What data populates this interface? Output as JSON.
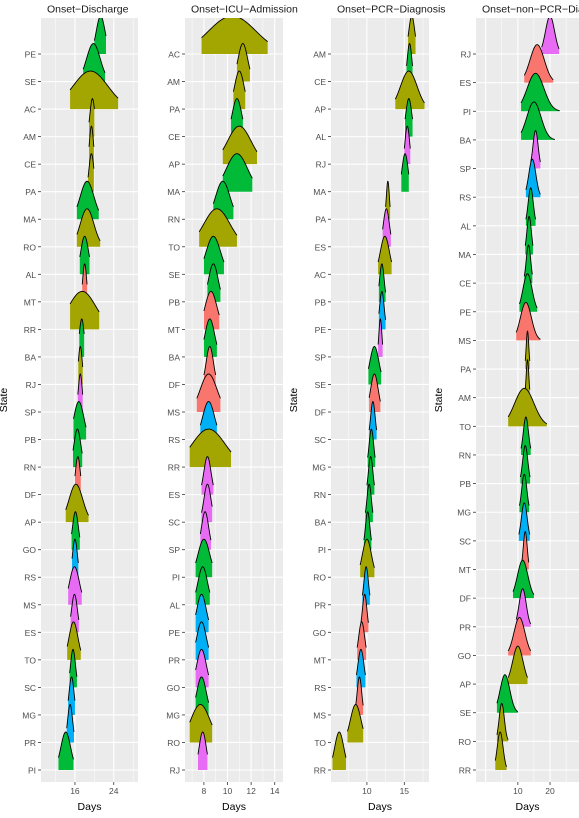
{
  "chart_data": [
    {
      "type": "ridgeline",
      "title": "Onset−Discharge",
      "xlabel": "Days",
      "ylabel": "State",
      "xlim": [
        9,
        29
      ],
      "xticks": [
        16,
        24
      ],
      "xtick_labels": [
        "16",
        "24"
      ],
      "states": [
        {
          "state": "PE",
          "center": 21.3,
          "spread": 0.9,
          "lo": 20.0,
          "hi": 22.4,
          "color": "#00BA38"
        },
        {
          "state": "SE",
          "center": 19.8,
          "spread": 1.4,
          "lo": 17.7,
          "hi": 22.2,
          "color": "#00BA38"
        },
        {
          "state": "AC",
          "center": 19.2,
          "spread": 3.6,
          "lo": 15.0,
          "hi": 24.9,
          "color": "#A3A500"
        },
        {
          "state": "AM",
          "center": 19.6,
          "spread": 0.5,
          "lo": 18.9,
          "hi": 20.0,
          "color": "#A3A500"
        },
        {
          "state": "CE",
          "center": 19.4,
          "spread": 0.4,
          "lo": 18.9,
          "hi": 19.9,
          "color": "#A3A500"
        },
        {
          "state": "PA",
          "center": 19.4,
          "spread": 0.5,
          "lo": 18.7,
          "hi": 19.9,
          "color": "#A3A500"
        },
        {
          "state": "MA",
          "center": 18.5,
          "spread": 1.4,
          "lo": 16.4,
          "hi": 20.9,
          "color": "#00BA38"
        },
        {
          "state": "RO",
          "center": 18.5,
          "spread": 1.4,
          "lo": 16.4,
          "hi": 21.2,
          "color": "#A3A500"
        },
        {
          "state": "AL",
          "center": 18.0,
          "spread": 0.8,
          "lo": 17.0,
          "hi": 19.0,
          "color": "#00BA38"
        },
        {
          "state": "MT",
          "center": 18.0,
          "spread": 0.4,
          "lo": 17.5,
          "hi": 18.5,
          "color": "#F8766D"
        },
        {
          "state": "RR",
          "center": 17.5,
          "spread": 2.8,
          "lo": 15.0,
          "hi": 21.0,
          "color": "#A3A500"
        },
        {
          "state": "BA",
          "center": 17.4,
          "spread": 0.5,
          "lo": 16.9,
          "hi": 17.9,
          "color": "#00BA38"
        },
        {
          "state": "RJ",
          "center": 17.1,
          "spread": 0.4,
          "lo": 16.7,
          "hi": 17.6,
          "color": "#A3A500"
        },
        {
          "state": "SP",
          "center": 17.1,
          "spread": 0.4,
          "lo": 16.6,
          "hi": 17.6,
          "color": "#E76BF3"
        },
        {
          "state": "PB",
          "center": 16.8,
          "spread": 1.0,
          "lo": 15.7,
          "hi": 18.3,
          "color": "#00BA38"
        },
        {
          "state": "RN",
          "center": 16.5,
          "spread": 0.7,
          "lo": 15.6,
          "hi": 17.5,
          "color": "#00BA38"
        },
        {
          "state": "DF",
          "center": 16.6,
          "spread": 0.5,
          "lo": 16.0,
          "hi": 17.2,
          "color": "#F8766D"
        },
        {
          "state": "AP",
          "center": 16.2,
          "spread": 1.4,
          "lo": 14.1,
          "hi": 18.8,
          "color": "#A3A500"
        },
        {
          "state": "GO",
          "center": 16.1,
          "spread": 0.6,
          "lo": 15.3,
          "hi": 17.0,
          "color": "#00BA38"
        },
        {
          "state": "RS",
          "center": 16.0,
          "spread": 0.5,
          "lo": 15.4,
          "hi": 16.7,
          "color": "#00B0F6"
        },
        {
          "state": "MS",
          "center": 15.9,
          "spread": 1.0,
          "lo": 14.6,
          "hi": 17.4,
          "color": "#E76BF3"
        },
        {
          "state": "ES",
          "center": 15.9,
          "spread": 0.6,
          "lo": 15.1,
          "hi": 16.8,
          "color": "#E76BF3"
        },
        {
          "state": "TO",
          "center": 15.7,
          "spread": 0.9,
          "lo": 14.4,
          "hi": 17.2,
          "color": "#A3A500"
        },
        {
          "state": "SC",
          "center": 15.6,
          "spread": 0.5,
          "lo": 14.9,
          "hi": 16.4,
          "color": "#00BA38"
        },
        {
          "state": "MG",
          "center": 15.3,
          "spread": 0.5,
          "lo": 14.6,
          "hi": 16.0,
          "color": "#00B0F6"
        },
        {
          "state": "PR",
          "center": 15.0,
          "spread": 0.5,
          "lo": 14.3,
          "hi": 15.8,
          "color": "#00B0F6"
        },
        {
          "state": "PI",
          "center": 14.1,
          "spread": 1.0,
          "lo": 12.6,
          "hi": 15.7,
          "color": "#00BA38"
        }
      ]
    },
    {
      "type": "ridgeline",
      "title": "Onset−ICU−Admission",
      "xlabel": "Days",
      "ylabel": "",
      "xlim": [
        6.4,
        14.7
      ],
      "xticks": [
        8,
        10,
        12,
        14
      ],
      "xtick_labels": [
        "8",
        "10",
        "12",
        "14"
      ],
      "states": [
        {
          "state": "AC",
          "center": 10.4,
          "spread": 2.0,
          "lo": 7.8,
          "hi": 13.4,
          "color": "#A3A500"
        },
        {
          "state": "AM",
          "center": 11.3,
          "spread": 0.4,
          "lo": 10.8,
          "hi": 11.9,
          "color": "#A3A500"
        },
        {
          "state": "PA",
          "center": 11.0,
          "spread": 0.4,
          "lo": 10.5,
          "hi": 11.5,
          "color": "#A3A500"
        },
        {
          "state": "CE",
          "center": 10.8,
          "spread": 0.4,
          "lo": 10.3,
          "hi": 11.3,
          "color": "#00BA38"
        },
        {
          "state": "AP",
          "center": 11.0,
          "spread": 1.0,
          "lo": 9.6,
          "hi": 12.5,
          "color": "#A3A500"
        },
        {
          "state": "MA",
          "center": 10.8,
          "spread": 0.9,
          "lo": 9.6,
          "hi": 12.1,
          "color": "#00BA38"
        },
        {
          "state": "RN",
          "center": 9.6,
          "spread": 0.6,
          "lo": 8.8,
          "hi": 10.5,
          "color": "#00BA38"
        },
        {
          "state": "TO",
          "center": 9.1,
          "spread": 1.1,
          "lo": 7.6,
          "hi": 10.8,
          "color": "#A3A500"
        },
        {
          "state": "SE",
          "center": 8.8,
          "spread": 0.6,
          "lo": 8.0,
          "hi": 9.7,
          "color": "#00BA38"
        },
        {
          "state": "PB",
          "center": 8.8,
          "spread": 0.4,
          "lo": 8.3,
          "hi": 9.4,
          "color": "#00BA38"
        },
        {
          "state": "MT",
          "center": 8.6,
          "spread": 0.5,
          "lo": 8.0,
          "hi": 9.3,
          "color": "#F8766D"
        },
        {
          "state": "BA",
          "center": 8.5,
          "spread": 0.4,
          "lo": 8.0,
          "hi": 9.1,
          "color": "#00BA38"
        },
        {
          "state": "DF",
          "center": 8.5,
          "spread": 0.3,
          "lo": 8.0,
          "hi": 9.0,
          "color": "#F8766D"
        },
        {
          "state": "MS",
          "center": 8.4,
          "spread": 0.7,
          "lo": 7.4,
          "hi": 9.4,
          "color": "#F8766D"
        },
        {
          "state": "RS",
          "center": 8.4,
          "spread": 0.5,
          "lo": 7.7,
          "hi": 9.1,
          "color": "#00B0F6"
        },
        {
          "state": "RR",
          "center": 8.4,
          "spread": 1.4,
          "lo": 6.8,
          "hi": 10.3,
          "color": "#A3A500"
        },
        {
          "state": "ES",
          "center": 8.3,
          "spread": 0.3,
          "lo": 7.8,
          "hi": 8.8,
          "color": "#E76BF3"
        },
        {
          "state": "SC",
          "center": 8.3,
          "spread": 0.3,
          "lo": 7.8,
          "hi": 8.7,
          "color": "#E76BF3"
        },
        {
          "state": "SP",
          "center": 8.1,
          "spread": 0.3,
          "lo": 7.7,
          "hi": 8.6,
          "color": "#E76BF3"
        },
        {
          "state": "PI",
          "center": 8.0,
          "spread": 0.5,
          "lo": 7.3,
          "hi": 8.7,
          "color": "#00BA38"
        },
        {
          "state": "AL",
          "center": 7.9,
          "spread": 0.4,
          "lo": 7.3,
          "hi": 8.5,
          "color": "#00BA38"
        },
        {
          "state": "PE",
          "center": 7.8,
          "spread": 0.4,
          "lo": 7.3,
          "hi": 8.4,
          "color": "#00B0F6"
        },
        {
          "state": "PR",
          "center": 7.8,
          "spread": 0.4,
          "lo": 7.3,
          "hi": 8.4,
          "color": "#00B0F6"
        },
        {
          "state": "GO",
          "center": 7.8,
          "spread": 0.4,
          "lo": 7.3,
          "hi": 8.4,
          "color": "#E76BF3"
        },
        {
          "state": "MG",
          "center": 7.8,
          "spread": 0.4,
          "lo": 7.3,
          "hi": 8.4,
          "color": "#00BA38"
        },
        {
          "state": "RO",
          "center": 7.7,
          "spread": 0.8,
          "lo": 6.8,
          "hi": 8.7,
          "color": "#A3A500"
        },
        {
          "state": "RJ",
          "center": 7.9,
          "spread": 0.3,
          "lo": 7.5,
          "hi": 8.3,
          "color": "#E76BF3"
        }
      ]
    },
    {
      "type": "ridgeline",
      "title": "Onset−PCR−Diagnosis",
      "xlabel": "Days",
      "ylabel": "State",
      "xlim": [
        5.2,
        18.3
      ],
      "xticks": [
        10,
        15
      ],
      "xtick_labels": [
        "10",
        "15"
      ],
      "states": [
        {
          "state": "AM",
          "center": 16.0,
          "spread": 0.4,
          "lo": 15.5,
          "hi": 16.5,
          "color": "#A3A500"
        },
        {
          "state": "CE",
          "center": 15.7,
          "spread": 0.3,
          "lo": 15.3,
          "hi": 16.1,
          "color": "#00BA38"
        },
        {
          "state": "AP",
          "center": 15.6,
          "spread": 1.1,
          "lo": 13.8,
          "hi": 17.7,
          "color": "#A3A500"
        },
        {
          "state": "AL",
          "center": 15.6,
          "spread": 0.4,
          "lo": 15.1,
          "hi": 16.1,
          "color": "#00BA38"
        },
        {
          "state": "RJ",
          "center": 15.4,
          "spread": 0.3,
          "lo": 15.0,
          "hi": 15.8,
          "color": "#E76BF3"
        },
        {
          "state": "MA",
          "center": 15.1,
          "spread": 0.4,
          "lo": 14.6,
          "hi": 15.6,
          "color": "#00BA38"
        },
        {
          "state": "PA",
          "center": 12.8,
          "spread": 0.2,
          "lo": 12.5,
          "hi": 13.1,
          "color": "#A3A500"
        },
        {
          "state": "ES",
          "center": 12.6,
          "spread": 0.4,
          "lo": 12.1,
          "hi": 13.2,
          "color": "#E76BF3"
        },
        {
          "state": "AC",
          "center": 12.4,
          "spread": 0.6,
          "lo": 11.5,
          "hi": 13.3,
          "color": "#A3A500"
        },
        {
          "state": "PB",
          "center": 12.0,
          "spread": 0.3,
          "lo": 11.6,
          "hi": 12.5,
          "color": "#00BA38"
        },
        {
          "state": "PE",
          "center": 12.0,
          "spread": 0.3,
          "lo": 11.6,
          "hi": 12.5,
          "color": "#00B0F6"
        },
        {
          "state": "SP",
          "center": 11.8,
          "spread": 0.2,
          "lo": 11.5,
          "hi": 12.1,
          "color": "#E76BF3"
        },
        {
          "state": "SE",
          "center": 11.0,
          "spread": 0.6,
          "lo": 10.2,
          "hi": 11.9,
          "color": "#00BA38"
        },
        {
          "state": "DF",
          "center": 11.0,
          "spread": 0.5,
          "lo": 10.3,
          "hi": 11.8,
          "color": "#F8766D"
        },
        {
          "state": "SC",
          "center": 10.8,
          "spread": 0.3,
          "lo": 10.3,
          "hi": 11.3,
          "color": "#00B0F6"
        },
        {
          "state": "MG",
          "center": 10.6,
          "spread": 0.3,
          "lo": 10.1,
          "hi": 11.1,
          "color": "#00BA38"
        },
        {
          "state": "RN",
          "center": 10.5,
          "spread": 0.3,
          "lo": 10.0,
          "hi": 11.0,
          "color": "#00BA38"
        },
        {
          "state": "BA",
          "center": 10.3,
          "spread": 0.3,
          "lo": 9.8,
          "hi": 10.8,
          "color": "#00BA38"
        },
        {
          "state": "PI",
          "center": 10.1,
          "spread": 0.3,
          "lo": 9.6,
          "hi": 10.6,
          "color": "#00BA38"
        },
        {
          "state": "RO",
          "center": 10.0,
          "spread": 0.6,
          "lo": 9.1,
          "hi": 11.0,
          "color": "#A3A500"
        },
        {
          "state": "PR",
          "center": 9.9,
          "spread": 0.3,
          "lo": 9.4,
          "hi": 10.4,
          "color": "#00B0F6"
        },
        {
          "state": "GO",
          "center": 9.7,
          "spread": 0.3,
          "lo": 9.2,
          "hi": 10.2,
          "color": "#F8766D"
        },
        {
          "state": "MT",
          "center": 9.3,
          "spread": 0.4,
          "lo": 8.7,
          "hi": 9.9,
          "color": "#F8766D"
        },
        {
          "state": "RS",
          "center": 9.2,
          "spread": 0.4,
          "lo": 8.6,
          "hi": 9.8,
          "color": "#00B0F6"
        },
        {
          "state": "MS",
          "center": 9.0,
          "spread": 0.3,
          "lo": 8.5,
          "hi": 9.5,
          "color": "#F8766D"
        },
        {
          "state": "TO",
          "center": 8.5,
          "spread": 0.7,
          "lo": 7.4,
          "hi": 9.5,
          "color": "#A3A500"
        },
        {
          "state": "RR",
          "center": 6.3,
          "spread": 0.6,
          "lo": 5.4,
          "hi": 7.2,
          "color": "#A3A500"
        }
      ]
    },
    {
      "type": "ridgeline",
      "title": "Onset−non−PCR−Diagnosis",
      "xlabel": "Days",
      "ylabel": "State",
      "xlim": [
        -3,
        29
      ],
      "xticks": [
        10,
        20
      ],
      "xtick_labels": [
        "10",
        "20"
      ],
      "states": [
        {
          "state": "RJ",
          "center": 20.0,
          "spread": 1.4,
          "lo": 17.4,
          "hi": 22.8,
          "color": "#E76BF3"
        },
        {
          "state": "ES",
          "center": 16.0,
          "spread": 2.2,
          "lo": 12.0,
          "hi": 21.0,
          "color": "#F8766D"
        },
        {
          "state": "PI",
          "center": 15.5,
          "spread": 2.6,
          "lo": 11.0,
          "hi": 23.0,
          "color": "#00BA38"
        },
        {
          "state": "BA",
          "center": 15.0,
          "spread": 2.2,
          "lo": 11.0,
          "hi": 21.5,
          "color": "#00BA38"
        },
        {
          "state": "SP",
          "center": 15.5,
          "spread": 0.8,
          "lo": 14.0,
          "hi": 17.0,
          "color": "#E76BF3"
        },
        {
          "state": "RS",
          "center": 14.5,
          "spread": 1.1,
          "lo": 12.5,
          "hi": 17.0,
          "color": "#00B0F6"
        },
        {
          "state": "AL",
          "center": 14.0,
          "spread": 0.8,
          "lo": 12.5,
          "hi": 15.5,
          "color": "#00BA38"
        },
        {
          "state": "MA",
          "center": 13.5,
          "spread": 0.7,
          "lo": 12.3,
          "hi": 14.7,
          "color": "#00BA38"
        },
        {
          "state": "CE",
          "center": 13.3,
          "spread": 0.7,
          "lo": 12.0,
          "hi": 14.5,
          "color": "#00BA38"
        },
        {
          "state": "PE",
          "center": 13.0,
          "spread": 1.4,
          "lo": 10.5,
          "hi": 16.0,
          "color": "#00BA38"
        },
        {
          "state": "MS",
          "center": 12.5,
          "spread": 1.7,
          "lo": 9.5,
          "hi": 17.0,
          "color": "#F8766D"
        },
        {
          "state": "PA",
          "center": 13.0,
          "spread": 0.4,
          "lo": 12.3,
          "hi": 13.7,
          "color": "#A3A500"
        },
        {
          "state": "AM",
          "center": 13.0,
          "spread": 0.4,
          "lo": 12.3,
          "hi": 13.7,
          "color": "#A3A500"
        },
        {
          "state": "TO",
          "center": 12.0,
          "spread": 3.0,
          "lo": 7.0,
          "hi": 19.0,
          "color": "#A3A500"
        },
        {
          "state": "RN",
          "center": 12.5,
          "spread": 0.8,
          "lo": 11.0,
          "hi": 14.0,
          "color": "#00BA38"
        },
        {
          "state": "PB",
          "center": 12.3,
          "spread": 0.8,
          "lo": 10.8,
          "hi": 13.8,
          "color": "#00BA38"
        },
        {
          "state": "MG",
          "center": 12.0,
          "spread": 0.8,
          "lo": 10.5,
          "hi": 13.5,
          "color": "#00BA38"
        },
        {
          "state": "SC",
          "center": 12.0,
          "spread": 0.9,
          "lo": 10.3,
          "hi": 13.7,
          "color": "#00B0F6"
        },
        {
          "state": "MT",
          "center": 12.3,
          "spread": 0.6,
          "lo": 11.2,
          "hi": 13.4,
          "color": "#F8766D"
        },
        {
          "state": "DF",
          "center": 11.5,
          "spread": 1.6,
          "lo": 8.5,
          "hi": 15.0,
          "color": "#00BA38"
        },
        {
          "state": "PR",
          "center": 11.5,
          "spread": 1.1,
          "lo": 9.5,
          "hi": 14.0,
          "color": "#E76BF3"
        },
        {
          "state": "GO",
          "center": 10.5,
          "spread": 1.7,
          "lo": 7.0,
          "hi": 14.0,
          "color": "#F8766D"
        },
        {
          "state": "AP",
          "center": 10.0,
          "spread": 1.6,
          "lo": 7.0,
          "hi": 13.0,
          "color": "#A3A500"
        },
        {
          "state": "SE",
          "center": 6.0,
          "spread": 1.5,
          "lo": 3.5,
          "hi": 10.0,
          "color": "#00BA38"
        },
        {
          "state": "RO",
          "center": 5.0,
          "spread": 0.8,
          "lo": 3.5,
          "hi": 7.0,
          "color": "#A3A500"
        },
        {
          "state": "RR",
          "center": 4.5,
          "spread": 0.9,
          "lo": 3.0,
          "hi": 6.5,
          "color": "#A3A500"
        }
      ]
    }
  ]
}
